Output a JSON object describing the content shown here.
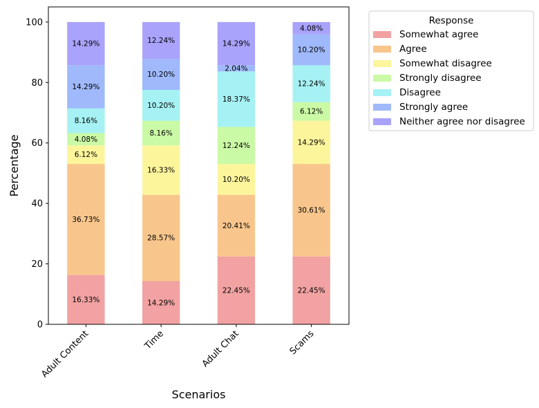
{
  "chart_data": {
    "type": "bar",
    "stacked": true,
    "xlabel": "Scenarios",
    "ylabel": "Percentage",
    "ylim": [
      0,
      105
    ],
    "yticks": [
      0,
      20,
      40,
      60,
      80,
      100
    ],
    "categories": [
      "Adult Content",
      "Time",
      "Adult Chat",
      "Scams"
    ],
    "legend": {
      "title": "Response",
      "placement": "outside-top-right"
    },
    "series": [
      {
        "name": "Somewhat agree",
        "color": "#f2a2a2",
        "values": [
          16.33,
          14.29,
          22.45,
          22.45
        ],
        "labels": [
          "16.33%",
          "14.29%",
          "22.45%",
          "22.45%"
        ]
      },
      {
        "name": "Agree",
        "color": "#f8c68c",
        "values": [
          36.73,
          28.57,
          20.41,
          30.61
        ],
        "labels": [
          "36.73%",
          "28.57%",
          "20.41%",
          "30.61%"
        ]
      },
      {
        "name": "Somewhat disagree",
        "color": "#fdf59c",
        "values": [
          6.12,
          16.33,
          10.2,
          14.29
        ],
        "labels": [
          "6.12%",
          "16.33%",
          "10.20%",
          "14.29%"
        ]
      },
      {
        "name": "Strongly disagree",
        "color": "#cbfaa6",
        "values": [
          4.08,
          8.16,
          12.24,
          6.12
        ],
        "labels": [
          "4.08%",
          "8.16%",
          "12.24%",
          "6.12%"
        ]
      },
      {
        "name": "Disagree",
        "color": "#a6f1f3",
        "values": [
          8.16,
          10.2,
          18.37,
          12.24
        ],
        "labels": [
          "8.16%",
          "10.20%",
          "18.37%",
          "12.24%"
        ]
      },
      {
        "name": "Strongly agree",
        "color": "#9fb9fb",
        "values": [
          14.29,
          10.2,
          2.04,
          10.2
        ],
        "labels": [
          "14.29%",
          "10.20%",
          "2.04%",
          "10.20%"
        ]
      },
      {
        "name": "Neither agree nor disagree",
        "color": "#a9a3fb",
        "values": [
          14.29,
          12.24,
          14.29,
          4.08
        ],
        "labels": [
          "14.29%",
          "12.24%",
          "14.29%",
          "4.08%"
        ]
      }
    ]
  }
}
